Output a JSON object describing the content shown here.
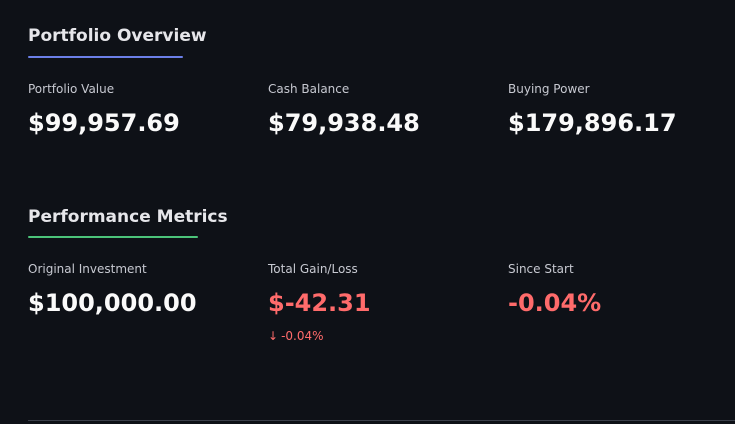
{
  "portfolio_overview": {
    "title": "Portfolio Overview",
    "accent": "#6b7fe8",
    "metrics": [
      {
        "label": "Portfolio Value",
        "value": "$99,957.69"
      },
      {
        "label": "Cash Balance",
        "value": "$79,938.48"
      },
      {
        "label": "Buying Power",
        "value": "$179,896.17"
      }
    ]
  },
  "performance_metrics": {
    "title": "Performance Metrics",
    "accent": "#4cc47a",
    "metrics": [
      {
        "label": "Original Investment",
        "value": "$100,000.00"
      },
      {
        "label": "Total Gain/Loss",
        "value": "$-42.31",
        "delta_arrow": "↓",
        "delta": "-0.04%"
      },
      {
        "label": "Since Start",
        "value": "-0.04%"
      }
    ]
  },
  "colors": {
    "background": "#0e1117",
    "negative": "#ff6b6b"
  }
}
